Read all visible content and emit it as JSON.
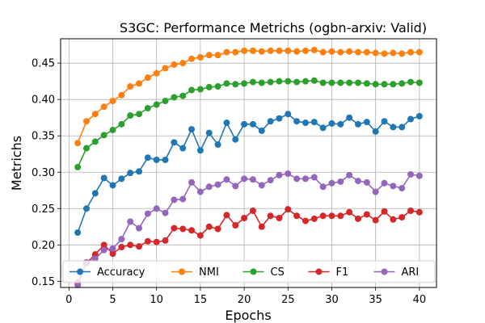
{
  "chart_data": {
    "type": "line",
    "title": "S3GC: Performance Metrichs (ogbn-arxiv: Valid)",
    "xlabel": "Epochs",
    "ylabel": "Metrichs",
    "xlim": [
      -0.95,
      41.95
    ],
    "ylim": [
      0.1415,
      0.4835
    ],
    "xticks": [
      0,
      5,
      10,
      15,
      20,
      25,
      30,
      35,
      40
    ],
    "yticks": [
      0.15,
      0.2,
      0.25,
      0.3,
      0.35,
      0.4,
      0.45
    ],
    "grid": true,
    "legend_position": "lower-center",
    "x": [
      1,
      2,
      3,
      4,
      5,
      6,
      7,
      8,
      9,
      10,
      11,
      12,
      13,
      14,
      15,
      16,
      17,
      18,
      19,
      20,
      21,
      22,
      23,
      24,
      25,
      26,
      27,
      28,
      29,
      30,
      31,
      32,
      33,
      34,
      35,
      36,
      37,
      38,
      39,
      40
    ],
    "series": [
      {
        "name": "Accuracy",
        "color": "#1f77b4",
        "values": [
          0.217,
          0.25,
          0.271,
          0.292,
          0.282,
          0.291,
          0.299,
          0.301,
          0.32,
          0.317,
          0.317,
          0.341,
          0.333,
          0.359,
          0.33,
          0.354,
          0.338,
          0.368,
          0.345,
          0.366,
          0.366,
          0.357,
          0.37,
          0.374,
          0.38,
          0.37,
          0.368,
          0.369,
          0.361,
          0.367,
          0.366,
          0.375,
          0.366,
          0.369,
          0.356,
          0.37,
          0.362,
          0.362,
          0.373,
          0.377
        ]
      },
      {
        "name": "NMI",
        "color": "#ff7f0e",
        "values": [
          0.34,
          0.37,
          0.38,
          0.39,
          0.398,
          0.406,
          0.418,
          0.422,
          0.43,
          0.436,
          0.443,
          0.448,
          0.45,
          0.456,
          0.458,
          0.461,
          0.461,
          0.465,
          0.465,
          0.467,
          0.467,
          0.466,
          0.467,
          0.467,
          0.467,
          0.466,
          0.467,
          0.468,
          0.465,
          0.466,
          0.465,
          0.466,
          0.465,
          0.465,
          0.464,
          0.463,
          0.464,
          0.463,
          0.465,
          0.465
        ]
      },
      {
        "name": "CS",
        "color": "#2ca02c",
        "values": [
          0.307,
          0.333,
          0.342,
          0.351,
          0.358,
          0.366,
          0.378,
          0.38,
          0.388,
          0.393,
          0.398,
          0.403,
          0.405,
          0.413,
          0.414,
          0.417,
          0.418,
          0.422,
          0.421,
          0.422,
          0.424,
          0.423,
          0.424,
          0.425,
          0.425,
          0.424,
          0.425,
          0.426,
          0.423,
          0.423,
          0.423,
          0.423,
          0.423,
          0.422,
          0.421,
          0.421,
          0.421,
          0.422,
          0.424,
          0.423
        ]
      },
      {
        "name": "F1",
        "color": "#d62728",
        "values": [
          0.148,
          0.175,
          0.187,
          0.2,
          0.188,
          0.197,
          0.2,
          0.198,
          0.205,
          0.204,
          0.206,
          0.223,
          0.222,
          0.22,
          0.213,
          0.225,
          0.222,
          0.241,
          0.227,
          0.237,
          0.247,
          0.225,
          0.24,
          0.237,
          0.249,
          0.24,
          0.233,
          0.236,
          0.24,
          0.24,
          0.24,
          0.245,
          0.236,
          0.242,
          0.234,
          0.246,
          0.235,
          0.238,
          0.247,
          0.245
        ]
      },
      {
        "name": "ARI",
        "color": "#9467bd",
        "values": [
          0.145,
          0.176,
          0.181,
          0.193,
          0.195,
          0.208,
          0.232,
          0.223,
          0.243,
          0.25,
          0.244,
          0.262,
          0.263,
          0.286,
          0.273,
          0.28,
          0.283,
          0.29,
          0.281,
          0.291,
          0.29,
          0.282,
          0.289,
          0.296,
          0.298,
          0.291,
          0.291,
          0.293,
          0.28,
          0.285,
          0.287,
          0.296,
          0.288,
          0.286,
          0.273,
          0.285,
          0.281,
          0.278,
          0.297,
          0.295
        ]
      }
    ]
  }
}
